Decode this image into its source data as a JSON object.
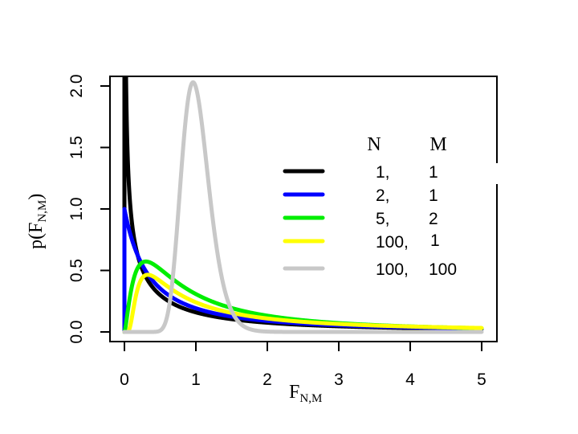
{
  "chart_data": {
    "type": "line",
    "title": "",
    "xlabel": "F",
    "xlabel_sub": "N,M",
    "ylabel": "p(F",
    "ylabel_sub": "N,M",
    "ylabel_close": ")",
    "xlim": [
      0,
      5
    ],
    "ylim": [
      0,
      2
    ],
    "x_ticks": [
      "0",
      "1",
      "2",
      "3",
      "4",
      "5"
    ],
    "y_ticks": [
      "0.0",
      "0.5",
      "1.0",
      "1.5",
      "2.0"
    ],
    "grid": false,
    "legend_position": "right",
    "legend_headers": [
      "N",
      "M"
    ],
    "series": [
      {
        "color": "#000000",
        "N": "1,",
        "M": "1",
        "df1": 1,
        "df2": 1
      },
      {
        "color": "#0000ff",
        "N": "2,",
        "M": "1",
        "df1": 2,
        "df2": 1
      },
      {
        "color": "#00ee00",
        "N": "5,",
        "M": "2",
        "df1": 5,
        "df2": 2
      },
      {
        "color": "#ffff00",
        "N": "100,",
        "M": "1",
        "df1": 100,
        "df2": 1
      },
      {
        "color": "#c8c8c8",
        "N": "100,",
        "M": "100",
        "df1": 100,
        "df2": 100
      }
    ]
  }
}
